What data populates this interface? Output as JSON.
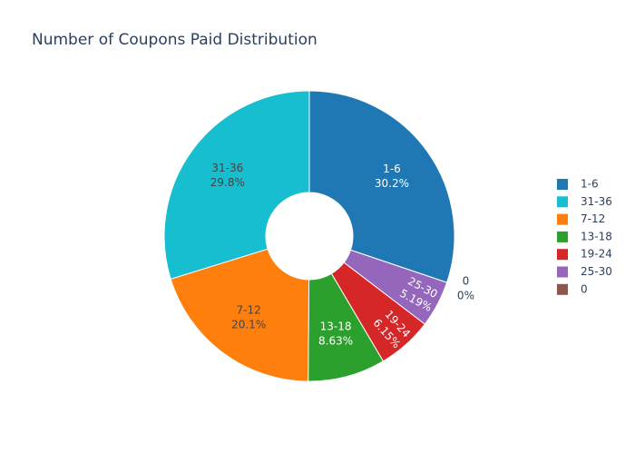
{
  "chart_data": {
    "type": "pie",
    "title": "Number of Coupons Paid Distribution",
    "categories": [
      "1-6",
      "31-36",
      "7-12",
      "13-18",
      "19-24",
      "25-30",
      "0"
    ],
    "values": [
      30.2,
      29.8,
      20.1,
      8.63,
      6.15,
      5.19,
      0
    ],
    "value_labels": [
      "30.2%",
      "29.8%",
      "20.1%",
      "8.63%",
      "6.15%",
      "5.19%",
      "0%"
    ],
    "colors": [
      "#1f77b4",
      "#17becf",
      "#ff7f0e",
      "#2ca02c",
      "#d62728",
      "#9467bd",
      "#8c564b"
    ],
    "legend": "right"
  }
}
